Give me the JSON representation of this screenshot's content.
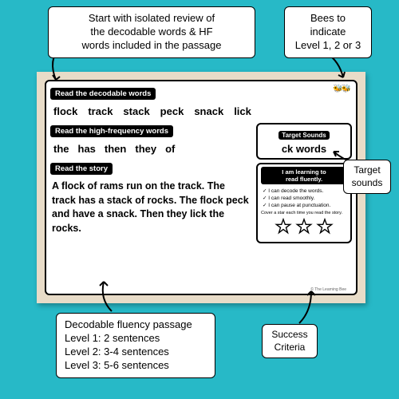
{
  "callouts": {
    "top_main": "Start with isolated review of\nthe decodable words & HF\nwords included in the passage",
    "top_right": "Bees to\nindicate\nLevel 1, 2 or 3",
    "right_target": "Target\nsounds",
    "bottom_right": "Success\nCriteria",
    "bottom_left_title": "Decodable fluency passage",
    "bottom_left_l1": "Level 1: 2 sentences",
    "bottom_left_l2": "Level 2: 3-4 sentences",
    "bottom_left_l3": "Level 3: 5-6 sentences"
  },
  "board": {
    "decodable_label": "Read the decodable words",
    "decodable_words": [
      "flock",
      "track",
      "stack",
      "peck",
      "snack",
      "lick"
    ],
    "hf_label": "Read the high-frequency words",
    "hf_words": [
      "the",
      "has",
      "then",
      "they",
      "of"
    ],
    "story_label": "Read the story",
    "story_text": "A flock of rams run on the track. The track has a stack of rocks. The flock peck and have a snack. Then they lick the rocks.",
    "target_header": "Target Sounds",
    "target_value": "ck words",
    "learning_header": "I am learning to\nread fluently.",
    "criteria": [
      "I can decode the words.",
      "I can read smoothly.",
      "I can pause at punctuation."
    ],
    "cover_text": "Cover a star each time you read the story.",
    "credit": "© The Learning Bee"
  }
}
